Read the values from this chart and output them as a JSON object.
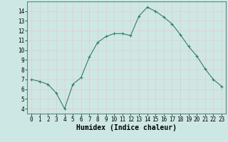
{
  "x": [
    0,
    1,
    2,
    3,
    4,
    5,
    6,
    7,
    8,
    9,
    10,
    11,
    12,
    13,
    14,
    15,
    16,
    17,
    18,
    19,
    20,
    21,
    22,
    23
  ],
  "y": [
    7.0,
    6.8,
    6.5,
    5.6,
    4.0,
    6.5,
    7.2,
    9.3,
    10.8,
    11.4,
    11.7,
    11.7,
    11.5,
    13.5,
    14.4,
    14.0,
    13.4,
    12.7,
    11.6,
    10.4,
    9.4,
    8.1,
    7.0,
    6.3
  ],
  "line_color": "#2e7d6e",
  "marker": "+",
  "marker_size": 3,
  "line_width": 0.8,
  "xlabel": "Humidex (Indice chaleur)",
  "xlabel_fontsize": 7,
  "xlim": [
    -0.5,
    23.5
  ],
  "ylim": [
    3.5,
    15.0
  ],
  "yticks": [
    4,
    5,
    6,
    7,
    8,
    9,
    10,
    11,
    12,
    13,
    14
  ],
  "xticks": [
    0,
    1,
    2,
    3,
    4,
    5,
    6,
    7,
    8,
    9,
    10,
    11,
    12,
    13,
    14,
    15,
    16,
    17,
    18,
    19,
    20,
    21,
    22,
    23
  ],
  "background_color": "#cde8e4",
  "grid_color": "#e8c8c8",
  "tick_fontsize": 5.5,
  "border_color": "#5a8a80"
}
